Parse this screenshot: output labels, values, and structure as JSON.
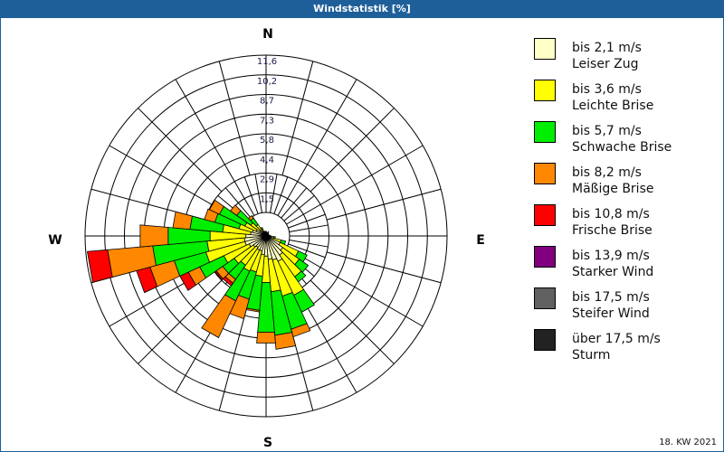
{
  "title": "Windstatistik [%]",
  "footer": "18. KW 2021",
  "compass": {
    "N": "N",
    "E": "E",
    "S": "S",
    "W": "W"
  },
  "legend": [
    {
      "range": "bis 2,1 m/s",
      "name": "Leiser Zug",
      "color": "#ffffc8"
    },
    {
      "range": "bis 3,6 m/s",
      "name": "Leichte Brise",
      "color": "#ffff00"
    },
    {
      "range": "bis 5,7 m/s",
      "name": "Schwache Brise",
      "color": "#00ee00"
    },
    {
      "range": "bis 8,2 m/s",
      "name": "Mäßige Brise",
      "color": "#ff8800"
    },
    {
      "range": "bis 10,8 m/s",
      "name": "Frische Brise",
      "color": "#ff0000"
    },
    {
      "range": "bis 13,9 m/s",
      "name": "Starker Wind",
      "color": "#800080"
    },
    {
      "range": "bis 17,5 m/s",
      "name": "Steifer Wind",
      "color": "#606060"
    },
    {
      "range": "über 17,5 m/s",
      "name": "Sturm",
      "color": "#222222"
    }
  ],
  "chart_data": {
    "type": "windrose",
    "title": "Windstatistik [%]",
    "radial_ticks": [
      "1,5",
      "2,9",
      "4,4",
      "5,8",
      "7,3",
      "8,7",
      "10,2",
      "11,6"
    ],
    "radial_max": 11.6,
    "sector_width_deg": 10,
    "series_names": [
      "bis 2,1 m/s",
      "bis 3,6 m/s",
      "bis 5,7 m/s",
      "bis 8,2 m/s",
      "bis 10,8 m/s"
    ],
    "directions_deg": [
      0,
      10,
      20,
      30,
      40,
      50,
      60,
      70,
      80,
      90,
      100,
      110,
      120,
      130,
      140,
      150,
      160,
      170,
      180,
      190,
      200,
      210,
      220,
      230,
      240,
      250,
      260,
      270,
      280,
      290,
      300,
      310,
      320,
      330,
      340,
      350
    ],
    "cumulative": [
      [
        0.2,
        0.3,
        0.3,
        0.3,
        0.3
      ],
      [
        0.2,
        0.2,
        0.2,
        0.2,
        0.2
      ],
      [
        0.2,
        0.2,
        0.2,
        0.2,
        0.2
      ],
      [
        0.2,
        0.3,
        0.3,
        0.3,
        0.3
      ],
      [
        0.2,
        0.2,
        0.2,
        0.2,
        0.2
      ],
      [
        0.2,
        0.2,
        0.2,
        0.2,
        0.2
      ],
      [
        0.2,
        0.2,
        0.2,
        0.2,
        0.2
      ],
      [
        0.2,
        0.2,
        0.2,
        0.2,
        0.2
      ],
      [
        0.2,
        0.2,
        0.2,
        0.2,
        0.2
      ],
      [
        0.2,
        0.3,
        0.3,
        0.3,
        0.3
      ],
      [
        0.3,
        0.5,
        0.6,
        0.6,
        0.6
      ],
      [
        0.5,
        1.0,
        1.3,
        1.3,
        1.3
      ],
      [
        1.0,
        2.3,
        2.9,
        2.9,
        2.9
      ],
      [
        1.3,
        2.6,
        3.3,
        3.3,
        3.3
      ],
      [
        1.5,
        3.2,
        3.6,
        3.6,
        3.6
      ],
      [
        1.8,
        4.2,
        5.4,
        5.4,
        5.4
      ],
      [
        1.6,
        4.0,
        6.2,
        6.7,
        6.7
      ],
      [
        1.5,
        3.6,
        6.4,
        7.3,
        7.3
      ],
      [
        1.3,
        3.0,
        6.2,
        6.9,
        6.9
      ],
      [
        1.2,
        2.6,
        4.8,
        4.9,
        4.9
      ],
      [
        1.0,
        2.4,
        4.2,
        5.5,
        5.5
      ],
      [
        1.0,
        2.5,
        4.6,
        7.2,
        7.2
      ],
      [
        0.9,
        2.3,
        3.4,
        3.7,
        3.9
      ],
      [
        1.0,
        2.5,
        3.4,
        3.9,
        4.0
      ],
      [
        1.2,
        3.0,
        4.7,
        5.5,
        6.1
      ],
      [
        1.4,
        4.0,
        6.1,
        7.7,
        8.6
      ],
      [
        1.4,
        3.8,
        7.3,
        10.2,
        11.5
      ],
      [
        1.3,
        3.6,
        6.3,
        8.1,
        8.1
      ],
      [
        1.0,
        2.8,
        4.9,
        6.0,
        6.0
      ],
      [
        0.9,
        1.8,
        3.4,
        4.1,
        4.1
      ],
      [
        0.7,
        1.5,
        3.3,
        4.0,
        4.0
      ],
      [
        0.5,
        1.2,
        2.3,
        2.8,
        2.8
      ],
      [
        0.4,
        0.9,
        1.4,
        1.6,
        1.6
      ],
      [
        0.3,
        0.5,
        0.6,
        0.6,
        0.6
      ],
      [
        0.2,
        0.3,
        0.3,
        0.3,
        0.3
      ],
      [
        0.2,
        0.3,
        0.3,
        0.3,
        0.3
      ]
    ]
  }
}
